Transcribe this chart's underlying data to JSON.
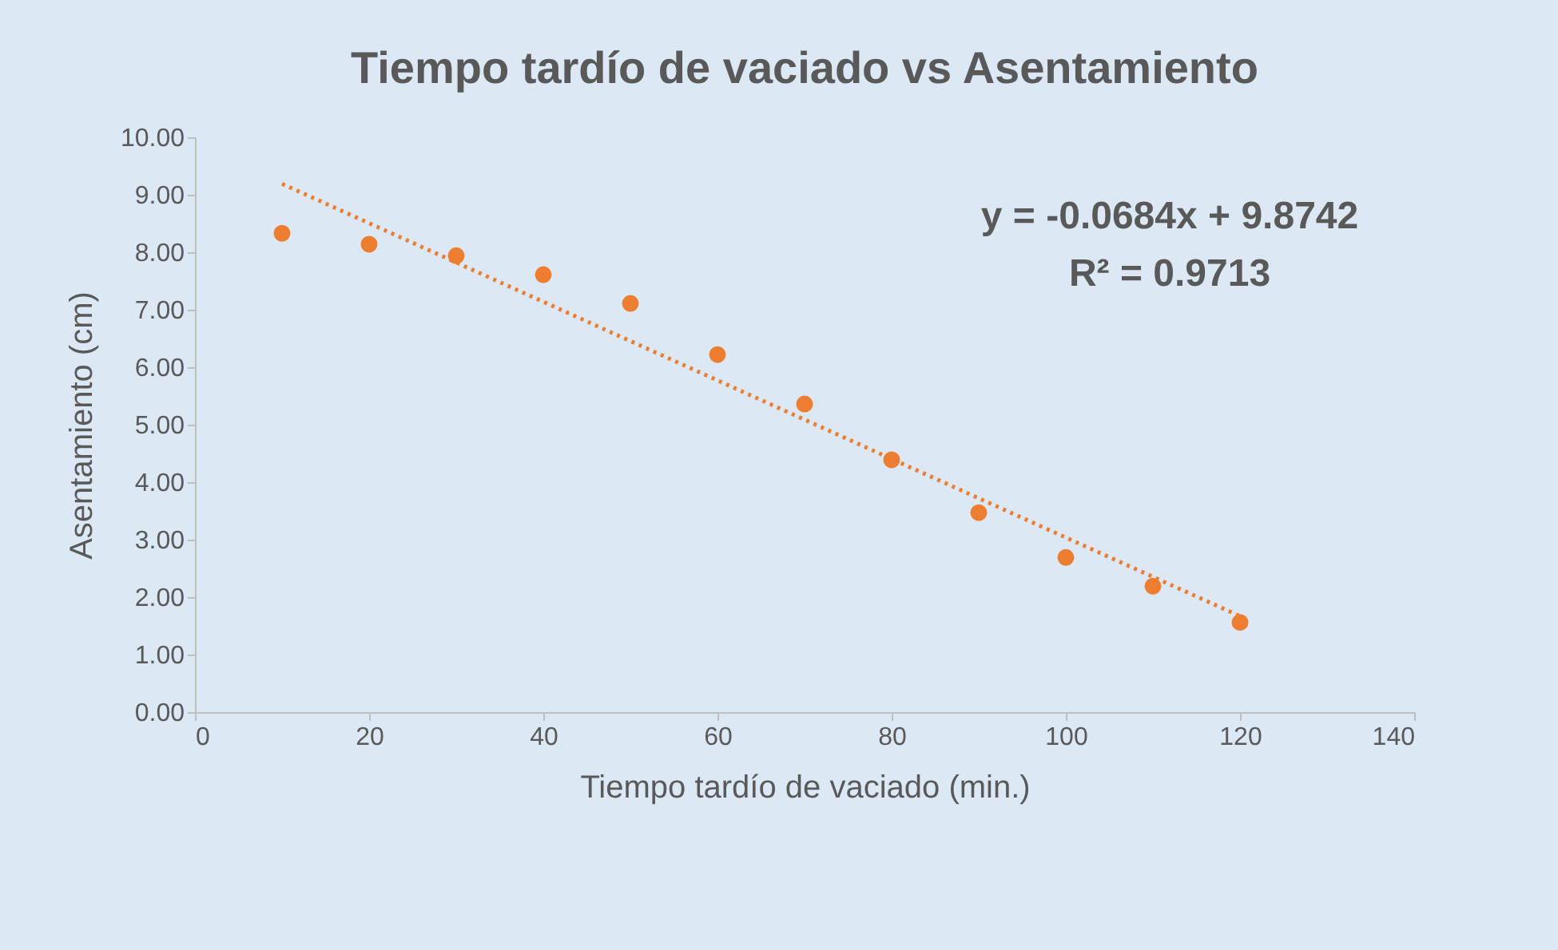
{
  "chart_data": {
    "type": "scatter",
    "title": "Tiempo tardío de vaciado vs Asentamiento",
    "xlabel": "Tiempo tardío de vaciado (min.)",
    "ylabel": "Asentamiento (cm)",
    "x": [
      10,
      20,
      30,
      40,
      50,
      60,
      70,
      80,
      90,
      100,
      110,
      120
    ],
    "series": [
      {
        "color": "#ed7d31",
        "marker": "circle",
        "values": [
          8.33,
          8.14,
          7.94,
          7.61,
          7.11,
          6.22,
          5.36,
          4.39,
          3.47,
          2.69,
          2.19,
          1.56
        ]
      },
      {
        "type": "line",
        "color": "#ed7d31",
        "line_style": "dotted",
        "x": [
          10,
          120
        ],
        "values": [
          9.19,
          1.67
        ]
      }
    ],
    "xlim": [
      0,
      140
    ],
    "xticks": [
      0,
      20,
      40,
      60,
      80,
      100,
      120,
      140
    ],
    "ylim": [
      0,
      10
    ],
    "yticks": [
      {
        "value": 0,
        "label": "0.00"
      },
      {
        "value": 1,
        "label": "1.00"
      },
      {
        "value": 2,
        "label": "2.00"
      },
      {
        "value": 3,
        "label": "3.00"
      },
      {
        "value": 4,
        "label": "4.00"
      },
      {
        "value": 5,
        "label": "5.00"
      },
      {
        "value": 6,
        "label": "6.00"
      },
      {
        "value": 7,
        "label": "7.00"
      },
      {
        "value": 8,
        "label": "8.00"
      },
      {
        "value": 9,
        "label": "9.00"
      },
      {
        "value": 10,
        "label": "10.00"
      }
    ],
    "annotations": [
      "y = -0.0684x + 9.8742",
      "R² = 0.9713"
    ],
    "grid": false
  }
}
